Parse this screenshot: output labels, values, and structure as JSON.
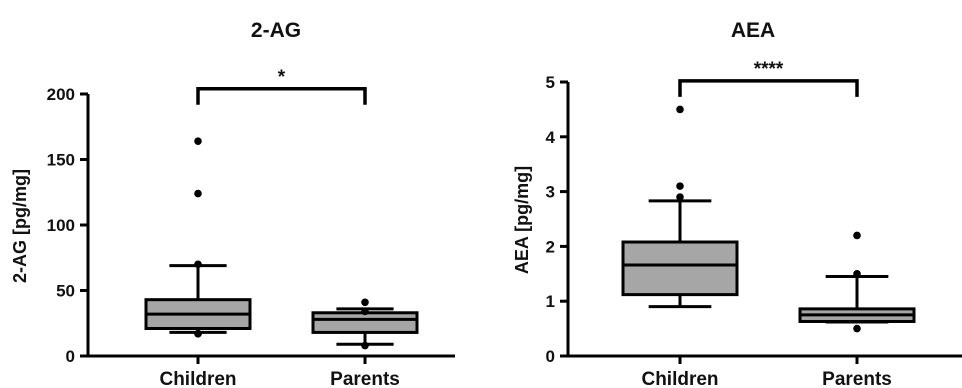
{
  "chart_data": [
    {
      "type": "box",
      "title": "2-AG",
      "xlabel": "",
      "ylabel": "2-AG [pg/mg]",
      "ylim": [
        0,
        200
      ],
      "yticks": [
        "0",
        "50",
        "100",
        "150",
        "200"
      ],
      "yticks_values": [
        0,
        50,
        100,
        150,
        200
      ],
      "categories": [
        "Children",
        "Parents"
      ],
      "box_fill": "#a6a6a6",
      "boxes": [
        {
          "category": "Children",
          "q1": 21,
          "median": 32,
          "q3": 43,
          "whisker_low": 18,
          "whisker_high": 69,
          "outliers": [
            164,
            124,
            70,
            17,
            17
          ]
        },
        {
          "category": "Parents",
          "q1": 18,
          "median": 28,
          "q3": 33,
          "whisker_low": 9,
          "whisker_high": 36,
          "outliers": [
            41,
            34,
            8
          ]
        }
      ],
      "significance": {
        "label": "*",
        "between": [
          "Children",
          "Parents"
        ],
        "y": 204
      }
    },
    {
      "type": "box",
      "title": "AEA",
      "xlabel": "",
      "ylabel": "AEA [pg/mg]",
      "ylim": [
        0,
        5
      ],
      "yticks": [
        "0",
        "1",
        "2",
        "3",
        "4",
        "5"
      ],
      "yticks_values": [
        0,
        1,
        2,
        3,
        4,
        5
      ],
      "categories": [
        "Children",
        "Parents"
      ],
      "box_fill": "#a6a6a6",
      "boxes": [
        {
          "category": "Children",
          "q1": 1.12,
          "median": 1.66,
          "q3": 2.08,
          "whisker_low": 0.9,
          "whisker_high": 2.83,
          "outliers": [
            4.5,
            3.1,
            2.9
          ]
        },
        {
          "category": "Parents",
          "q1": 0.63,
          "median": 0.75,
          "q3": 0.86,
          "whisker_low": 0.62,
          "whisker_high": 1.45,
          "outliers": [
            2.2,
            1.5,
            0.5
          ]
        }
      ],
      "significance": {
        "label": "****",
        "between": [
          "Children",
          "Parents"
        ],
        "y": 5.02
      }
    }
  ]
}
